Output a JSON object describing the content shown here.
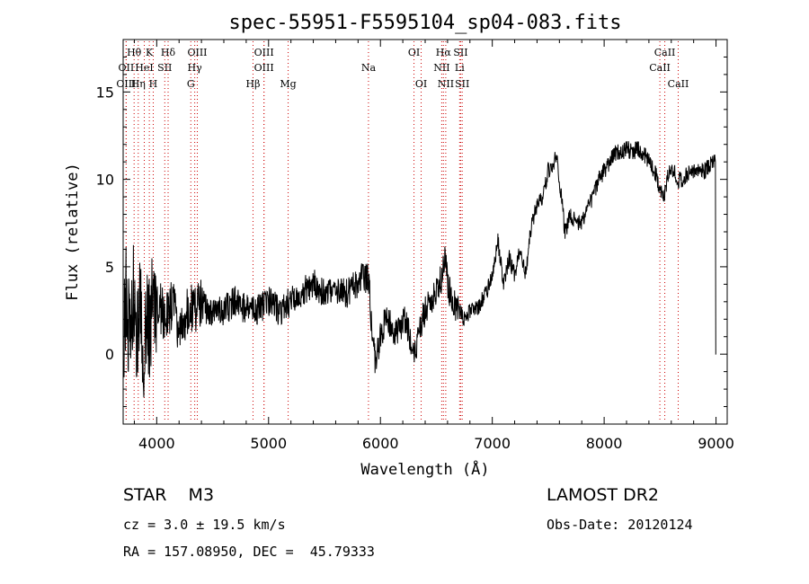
{
  "chart_data": {
    "type": "line",
    "title": "spec-55951-F5595104_sp04-083.fits",
    "xlabel": "Wavelength (Å)",
    "ylabel": "Flux (relative)",
    "xlim": [
      3700,
      9100
    ],
    "ylim": [
      -4,
      18
    ],
    "xticks": [
      4000,
      5000,
      6000,
      7000,
      8000,
      9000
    ],
    "yticks": [
      0,
      5,
      10,
      15
    ],
    "grid": false,
    "line_color": "#000000",
    "marker_color": "#cc0000",
    "lines": [
      {
        "label": "Hθ",
        "wavelength": 3798,
        "row": 1
      },
      {
        "label": "K",
        "wavelength": 3934,
        "row": 1
      },
      {
        "label": "Hδ",
        "wavelength": 4102,
        "row": 1
      },
      {
        "label": "OIII",
        "wavelength": 4363,
        "row": 1
      },
      {
        "label": "OIII",
        "wavelength": 4959,
        "row": 1
      },
      {
        "label": "OI",
        "wavelength": 6300,
        "row": 1
      },
      {
        "label": "Hα",
        "wavelength": 6563,
        "row": 1
      },
      {
        "label": "SII",
        "wavelength": 6717,
        "row": 1
      },
      {
        "label": "CaII",
        "wavelength": 8542,
        "row": 1
      },
      {
        "label": "OII",
        "wavelength": 3727,
        "row": 2
      },
      {
        "label": "HeI",
        "wavelength": 3889,
        "row": 2
      },
      {
        "label": "SII",
        "wavelength": 4072,
        "row": 2
      },
      {
        "label": "Hγ",
        "wavelength": 4340,
        "row": 2
      },
      {
        "label": "OIII",
        "wavelength": 4959,
        "row": 2
      },
      {
        "label": "Na",
        "wavelength": 5893,
        "row": 2
      },
      {
        "label": "NII",
        "wavelength": 6548,
        "row": 2
      },
      {
        "label": "Li",
        "wavelength": 6708,
        "row": 2
      },
      {
        "label": "CaII",
        "wavelength": 8498,
        "row": 2
      },
      {
        "label": "OIII",
        "wavelength": 3727,
        "row": 3
      },
      {
        "label": "Hη",
        "wavelength": 3835,
        "row": 3
      },
      {
        "label": "H",
        "wavelength": 3969,
        "row": 3
      },
      {
        "label": "G",
        "wavelength": 4305,
        "row": 3
      },
      {
        "label": "Hβ",
        "wavelength": 4861,
        "row": 3
      },
      {
        "label": "Mg",
        "wavelength": 5175,
        "row": 3
      },
      {
        "label": "OI",
        "wavelength": 6364,
        "row": 3
      },
      {
        "label": "NII",
        "wavelength": 6584,
        "row": 3
      },
      {
        "label": "SII",
        "wavelength": 6731,
        "row": 3
      },
      {
        "label": "CaII",
        "wavelength": 8662,
        "row": 3
      }
    ],
    "series": [
      {
        "x": [
          3700,
          3730,
          3760,
          3790,
          3820,
          3850,
          3880,
          3910,
          3940,
          3970,
          4000,
          4050,
          4100,
          4150,
          4200,
          4250,
          4300,
          4350,
          4400,
          4450,
          4500,
          4600,
          4700,
          4800,
          4900,
          5000,
          5100,
          5200,
          5300,
          5400,
          5500,
          5600,
          5700,
          5800,
          5850,
          5900,
          5930,
          5960,
          6000,
          6050,
          6100,
          6150,
          6200,
          6250,
          6300,
          6350,
          6400,
          6450,
          6500,
          6550,
          6580,
          6600,
          6650,
          6700,
          6750,
          6800,
          6850,
          6900,
          6950,
          7000,
          7050,
          7100,
          7150,
          7200,
          7250,
          7300,
          7350,
          7400,
          7450,
          7500,
          7550,
          7580,
          7600,
          7650,
          7700,
          7750,
          7800,
          7850,
          7900,
          7950,
          8000,
          8050,
          8100,
          8150,
          8200,
          8250,
          8300,
          8350,
          8400,
          8450,
          8500,
          8540,
          8580,
          8620,
          8660,
          8700,
          8750,
          8800,
          8850,
          8900,
          8950,
          9000
        ],
        "y": [
          1,
          3.5,
          0.5,
          4,
          1,
          3,
          0,
          2,
          1.5,
          3,
          2.5,
          2.5,
          2,
          3,
          1.5,
          2,
          3,
          2.2,
          3,
          2.5,
          2.5,
          2.5,
          3,
          2.5,
          2.5,
          3,
          2.5,
          3,
          3.5,
          4,
          3.5,
          3.5,
          3.5,
          4,
          4.5,
          4.2,
          0.5,
          -0.5,
          1,
          2,
          1.5,
          1,
          2,
          1.5,
          0,
          1.5,
          2.5,
          3,
          3.5,
          4.5,
          5.5,
          4,
          3,
          2.5,
          2,
          2.5,
          2.5,
          3,
          3.5,
          4.5,
          6.5,
          4,
          5.5,
          4.5,
          6,
          4.5,
          7.5,
          8.5,
          9,
          10.5,
          11,
          11.3,
          10,
          7,
          8,
          7.5,
          7.5,
          8.5,
          9,
          10,
          10.5,
          11,
          11.5,
          11.5,
          11.8,
          11.5,
          11.8,
          11.5,
          11,
          10.5,
          9.5,
          9,
          10.5,
          10.5,
          10,
          10,
          10.3,
          10.5,
          10.5,
          10.5,
          10.8,
          11
        ]
      }
    ]
  },
  "info": {
    "object_type": "STAR    M3",
    "survey": "LAMOST DR2",
    "cz": "cz = 3.0 ± 19.5 km/s",
    "obs_date": "Obs-Date: 20120124",
    "coords": "RA = 157.08950, DEC =  45.79333"
  }
}
